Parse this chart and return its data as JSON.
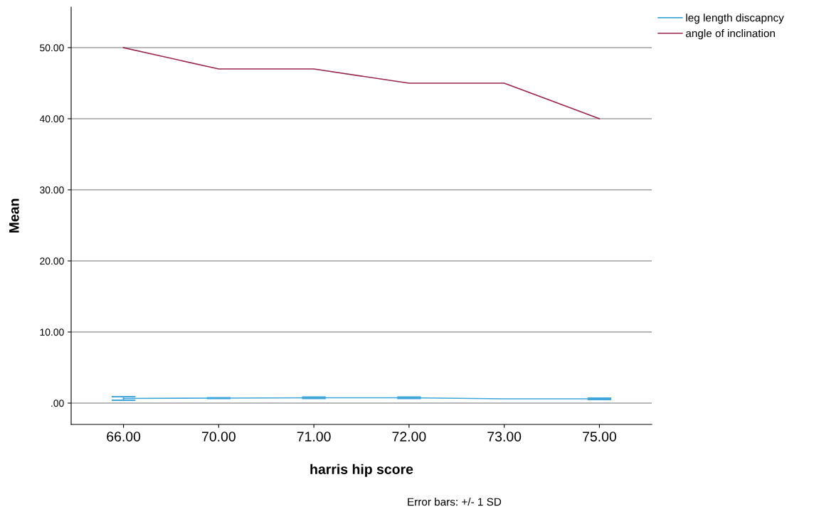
{
  "chart_data": {
    "type": "line",
    "xlabel": "harris hip score",
    "ylabel": "Mean",
    "categories": [
      "66.00",
      "70.00",
      "71.00",
      "72.00",
      "73.00",
      "75.00"
    ],
    "series": [
      {
        "name": "leg length discapncy",
        "color": "#41a6dc",
        "values": [
          0.65,
          0.7,
          0.75,
          0.75,
          0.6,
          0.6
        ],
        "errors": [
          0.25,
          0.05,
          0.1,
          0.1,
          null,
          0.1
        ]
      },
      {
        "name": "angle of inclination",
        "color": "#9b2450",
        "values": [
          50,
          47,
          47,
          45,
          45,
          40
        ]
      }
    ],
    "ylim": [
      -3,
      55.7
    ],
    "yticks": [
      {
        "value": 0,
        "label": ".00"
      },
      {
        "value": 10,
        "label": "10.00"
      },
      {
        "value": 20,
        "label": "20.00"
      },
      {
        "value": 30,
        "label": "30.00"
      },
      {
        "value": 40,
        "label": "40.00"
      },
      {
        "value": 50,
        "label": "50.00"
      }
    ],
    "grid": "y",
    "legend": "top right",
    "marker": "none",
    "line_style": "solid",
    "annotations": [
      "Error bars: +/- 1 SD"
    ]
  }
}
